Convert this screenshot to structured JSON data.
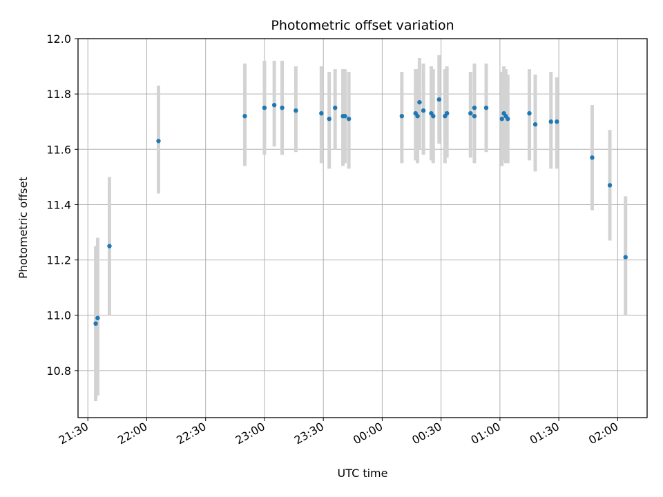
{
  "chart_data": {
    "type": "scatter",
    "title": "Photometric offset variation",
    "xlabel": "UTC time",
    "ylabel": "Photometric offset",
    "x_unit": "UTC time (HH:MM, evening into next morning)",
    "xlim": [
      "21:25",
      "02:15"
    ],
    "ylim": [
      10.63,
      12.0
    ],
    "grid": true,
    "legend": "none",
    "marker_color": "#1f77b4",
    "errorbar_color": "#d3d3d3",
    "x_ticks": [
      "21:30",
      "22:00",
      "22:30",
      "23:00",
      "23:30",
      "00:00",
      "00:30",
      "01:00",
      "01:30",
      "02:00"
    ],
    "y_ticks": [
      "10.8",
      "11.0",
      "11.2",
      "11.4",
      "11.6",
      "11.8",
      "12.0"
    ],
    "points": [
      {
        "t": "21:34",
        "y": 10.97,
        "lo": 10.69,
        "hi": 11.25
      },
      {
        "t": "21:35",
        "y": 10.99,
        "lo": 10.71,
        "hi": 11.28
      },
      {
        "t": "21:41",
        "y": 11.25,
        "lo": 11.0,
        "hi": 11.5
      },
      {
        "t": "22:06",
        "y": 11.63,
        "lo": 11.44,
        "hi": 11.83
      },
      {
        "t": "22:50",
        "y": 11.72,
        "lo": 11.54,
        "hi": 11.91
      },
      {
        "t": "23:00",
        "y": 11.75,
        "lo": 11.58,
        "hi": 11.92
      },
      {
        "t": "23:05",
        "y": 11.76,
        "lo": 11.61,
        "hi": 11.92
      },
      {
        "t": "23:09",
        "y": 11.75,
        "lo": 11.58,
        "hi": 11.92
      },
      {
        "t": "23:16",
        "y": 11.74,
        "lo": 11.59,
        "hi": 11.9
      },
      {
        "t": "23:29",
        "y": 11.73,
        "lo": 11.55,
        "hi": 11.9
      },
      {
        "t": "23:33",
        "y": 11.71,
        "lo": 11.53,
        "hi": 11.88
      },
      {
        "t": "23:36",
        "y": 11.75,
        "lo": 11.6,
        "hi": 11.89
      },
      {
        "t": "23:40",
        "y": 11.72,
        "lo": 11.54,
        "hi": 11.89
      },
      {
        "t": "23:41",
        "y": 11.72,
        "lo": 11.55,
        "hi": 11.89
      },
      {
        "t": "23:43",
        "y": 11.71,
        "lo": 11.53,
        "hi": 11.88
      },
      {
        "t": "00:10",
        "y": 11.72,
        "lo": 11.55,
        "hi": 11.88
      },
      {
        "t": "00:17",
        "y": 11.73,
        "lo": 11.56,
        "hi": 11.89
      },
      {
        "t": "00:18",
        "y": 11.72,
        "lo": 11.55,
        "hi": 11.89
      },
      {
        "t": "00:19",
        "y": 11.77,
        "lo": 11.6,
        "hi": 11.93
      },
      {
        "t": "00:21",
        "y": 11.74,
        "lo": 11.58,
        "hi": 11.91
      },
      {
        "t": "00:25",
        "y": 11.73,
        "lo": 11.56,
        "hi": 11.9
      },
      {
        "t": "00:26",
        "y": 11.72,
        "lo": 11.55,
        "hi": 11.89
      },
      {
        "t": "00:29",
        "y": 11.78,
        "lo": 11.62,
        "hi": 11.94
      },
      {
        "t": "00:32",
        "y": 11.72,
        "lo": 11.55,
        "hi": 11.89
      },
      {
        "t": "00:33",
        "y": 11.73,
        "lo": 11.57,
        "hi": 11.9
      },
      {
        "t": "00:45",
        "y": 11.73,
        "lo": 11.57,
        "hi": 11.88
      },
      {
        "t": "00:47",
        "y": 11.72,
        "lo": 11.55,
        "hi": 11.88
      },
      {
        "t": "00:47",
        "y": 11.75,
        "lo": 11.6,
        "hi": 11.91
      },
      {
        "t": "00:53",
        "y": 11.75,
        "lo": 11.59,
        "hi": 11.91
      },
      {
        "t": "01:01",
        "y": 11.71,
        "lo": 11.54,
        "hi": 11.88
      },
      {
        "t": "01:02",
        "y": 11.73,
        "lo": 11.56,
        "hi": 11.9
      },
      {
        "t": "01:03",
        "y": 11.72,
        "lo": 11.55,
        "hi": 11.89
      },
      {
        "t": "01:04",
        "y": 11.71,
        "lo": 11.55,
        "hi": 11.87
      },
      {
        "t": "01:15",
        "y": 11.73,
        "lo": 11.56,
        "hi": 11.89
      },
      {
        "t": "01:18",
        "y": 11.69,
        "lo": 11.52,
        "hi": 11.87
      },
      {
        "t": "01:26",
        "y": 11.7,
        "lo": 11.53,
        "hi": 11.88
      },
      {
        "t": "01:29",
        "y": 11.7,
        "lo": 11.53,
        "hi": 11.86
      },
      {
        "t": "01:47",
        "y": 11.57,
        "lo": 11.38,
        "hi": 11.76
      },
      {
        "t": "01:56",
        "y": 11.47,
        "lo": 11.27,
        "hi": 11.67
      },
      {
        "t": "02:04",
        "y": 11.21,
        "lo": 11.0,
        "hi": 11.43
      }
    ]
  }
}
